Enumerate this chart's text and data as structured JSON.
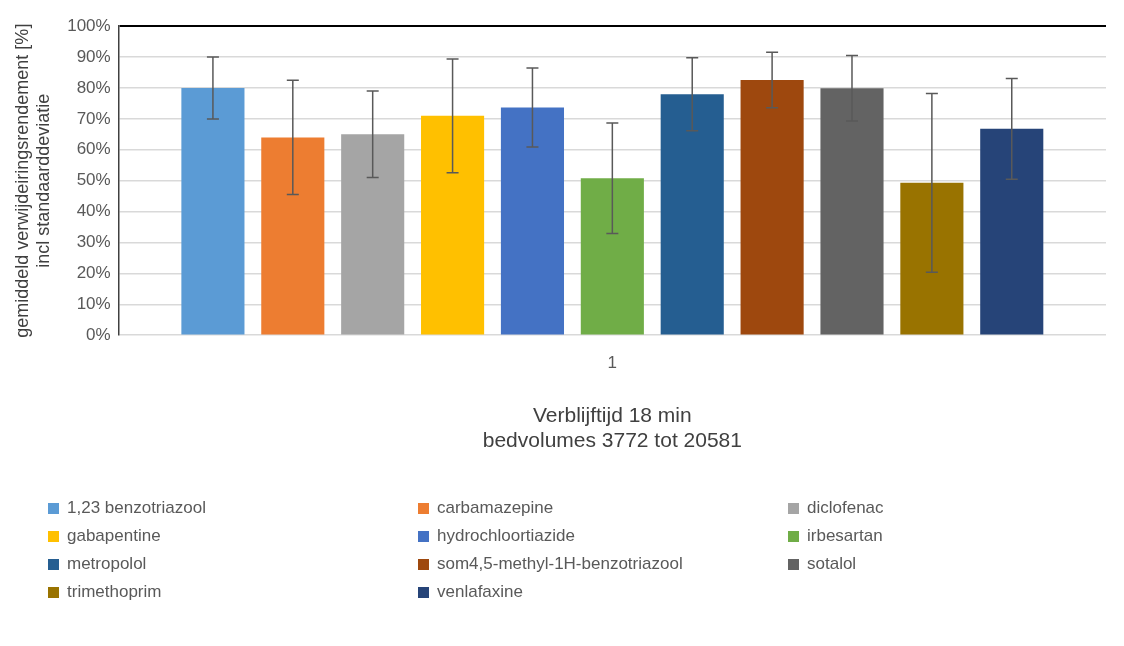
{
  "chart_data": {
    "type": "bar",
    "xlabel": "Verblijftijd 18 min\nbedvolumes 3772 tot 20581",
    "ylabel": "gemiddeld verwijdeiringsrendement [%]\nincl standaarddeviatie",
    "categories": [
      "1"
    ],
    "series": [
      {
        "name": "1,23 benzotriazool",
        "color": "#5b9bd5",
        "values": [
          80
        ],
        "errors": [
          10
        ]
      },
      {
        "name": "carbamazepine",
        "color": "#ed7d31",
        "values": [
          64
        ],
        "errors": [
          18.5
        ]
      },
      {
        "name": "diclofenac",
        "color": "#a5a5a5",
        "values": [
          65
        ],
        "errors": [
          14
        ]
      },
      {
        "name": "gabapentine",
        "color": "#ffc000",
        "values": [
          71
        ],
        "errors": [
          18.4
        ]
      },
      {
        "name": "hydrochloortiazide",
        "color": "#4472c4",
        "values": [
          73.7
        ],
        "errors": [
          12.8
        ]
      },
      {
        "name": "irbesartan",
        "color": "#70ad47",
        "values": [
          50.8
        ],
        "errors": [
          17.9
        ]
      },
      {
        "name": "metropolol",
        "color": "#255e91",
        "values": [
          78
        ],
        "errors": [
          11.8
        ]
      },
      {
        "name": "som4,5-methyl-1H-benzotriazool",
        "color": "#9e480e",
        "values": [
          82.6
        ],
        "errors": [
          9
        ]
      },
      {
        "name": "sotalol",
        "color": "#636363",
        "values": [
          79.9
        ],
        "errors": [
          10.6
        ]
      },
      {
        "name": "trimethoprim",
        "color": "#997300",
        "values": [
          49.3
        ],
        "errors": [
          28.9
        ]
      },
      {
        "name": "venlafaxine",
        "color": "#264478",
        "values": [
          66.8
        ],
        "errors": [
          16.3
        ]
      }
    ],
    "ylim": [
      0,
      100
    ],
    "yticks": [
      {
        "value": 0,
        "label": "0%"
      },
      {
        "value": 10,
        "label": "10%"
      },
      {
        "value": 20,
        "label": "20%"
      },
      {
        "value": 30,
        "label": "30%"
      },
      {
        "value": 40,
        "label": "40%"
      },
      {
        "value": 50,
        "label": "50%"
      },
      {
        "value": 60,
        "label": "60%"
      },
      {
        "value": 70,
        "label": "70%"
      },
      {
        "value": 80,
        "label": "80%"
      },
      {
        "value": 90,
        "label": "90%"
      },
      {
        "value": 100,
        "label": "100%"
      }
    ],
    "grid": "y",
    "legend": "bottom"
  }
}
